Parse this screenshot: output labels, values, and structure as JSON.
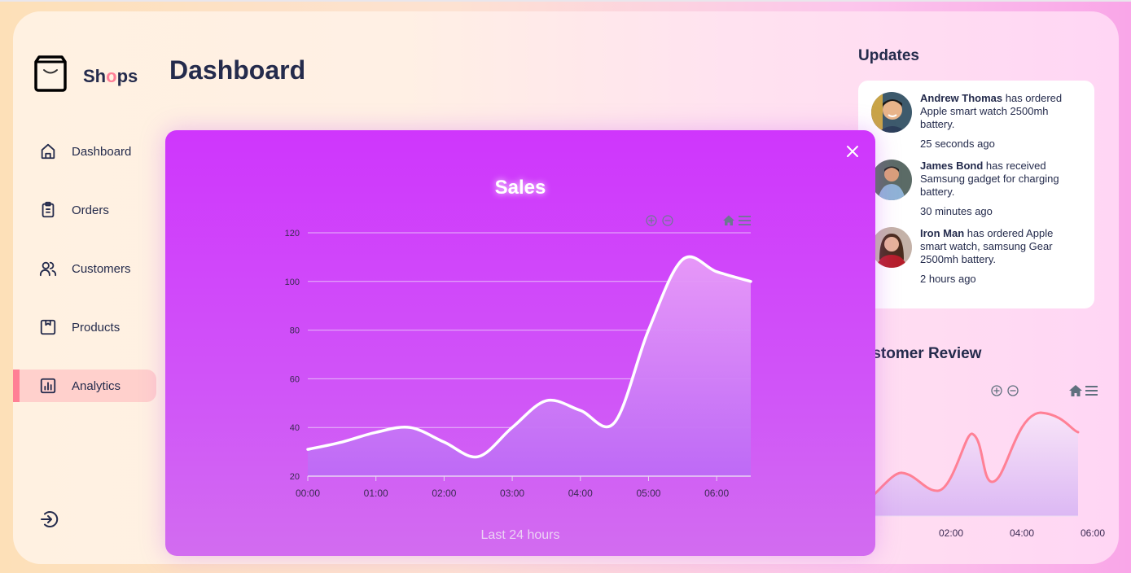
{
  "brand": {
    "name_pre": "Sh",
    "name_o": "o",
    "name_post": "ps",
    "accent": "#ff7f97"
  },
  "page_title": "Dashboard",
  "sidebar": {
    "items": [
      {
        "label": "Dashboard",
        "icon": "home-icon",
        "active": false
      },
      {
        "label": "Orders",
        "icon": "clipboard-icon",
        "active": false
      },
      {
        "label": "Customers",
        "icon": "users-icon",
        "active": false
      },
      {
        "label": "Products",
        "icon": "box-icon",
        "active": false
      },
      {
        "label": "Analytics",
        "icon": "bar-chart-icon",
        "active": true
      }
    ],
    "logout_icon": "logout-icon"
  },
  "updates": {
    "title": "Updates",
    "items": [
      {
        "name": "Andrew Thomas",
        "text": " has ordered Apple smart watch 2500mh battery.",
        "time": "25 seconds ago"
      },
      {
        "name": "James Bond",
        "text": " has received Samsung gadget for charging battery.",
        "time": "30 minutes ago"
      },
      {
        "name": "Iron Man",
        "text": " has ordered Apple smart watch, samsung Gear 2500mh battery.",
        "time": "2 hours ago"
      }
    ]
  },
  "customer_review": {
    "title": "Customer Review",
    "toolbar": [
      "zoom-in-icon",
      "zoom-out-icon",
      "home-icon",
      "menu-icon"
    ]
  },
  "modal": {
    "title": "Sales",
    "footer": "Last 24 hours",
    "close_icon": "close-icon",
    "toolbar": [
      "zoom-in-icon",
      "zoom-out-icon",
      "home-icon",
      "menu-icon"
    ]
  },
  "colors": {
    "modal_top": "#cf36fc",
    "modal_bottom": "#d26cf0",
    "text_dark": "#242b4c",
    "active_nav_bg": "#ffd0cc",
    "active_nav_bar": "#ff8095",
    "review_line": "#ff8095"
  },
  "chart_data": [
    {
      "type": "area",
      "title": "Sales",
      "subtitle": "Last 24 hours",
      "x": [
        "00:00",
        "00:30",
        "01:00",
        "01:30",
        "02:00",
        "02:30",
        "03:00",
        "03:30",
        "04:00",
        "04:30",
        "05:00",
        "05:30",
        "06:00",
        "06:30"
      ],
      "series": [
        {
          "name": "Sales",
          "values": [
            31,
            34,
            38,
            40,
            34,
            28,
            40,
            51,
            47,
            42,
            80,
            109,
            104,
            100
          ]
        }
      ],
      "xticks": [
        "00:00",
        "01:00",
        "02:00",
        "03:00",
        "04:00",
        "05:00",
        "06:00"
      ],
      "yticks": [
        20,
        40,
        60,
        80,
        100,
        120
      ],
      "ylim": [
        20,
        120
      ],
      "grid": true,
      "legend": "none",
      "xlabel": "",
      "ylabel": ""
    },
    {
      "type": "area",
      "title": "Customer Review",
      "x": [
        "00:30",
        "01:00",
        "01:30",
        "02:00",
        "02:30",
        "03:00",
        "03:30",
        "04:00",
        "04:30",
        "05:00",
        "05:30",
        "06:00",
        "06:30"
      ],
      "series": [
        {
          "name": "Review",
          "values": [
            10,
            25,
            35,
            30,
            20,
            40,
            55,
            45,
            25,
            50,
            75,
            70,
            65
          ]
        }
      ],
      "xticks": [
        "02:00",
        "04:00",
        "06:00"
      ],
      "grid": false,
      "legend": "none"
    }
  ]
}
